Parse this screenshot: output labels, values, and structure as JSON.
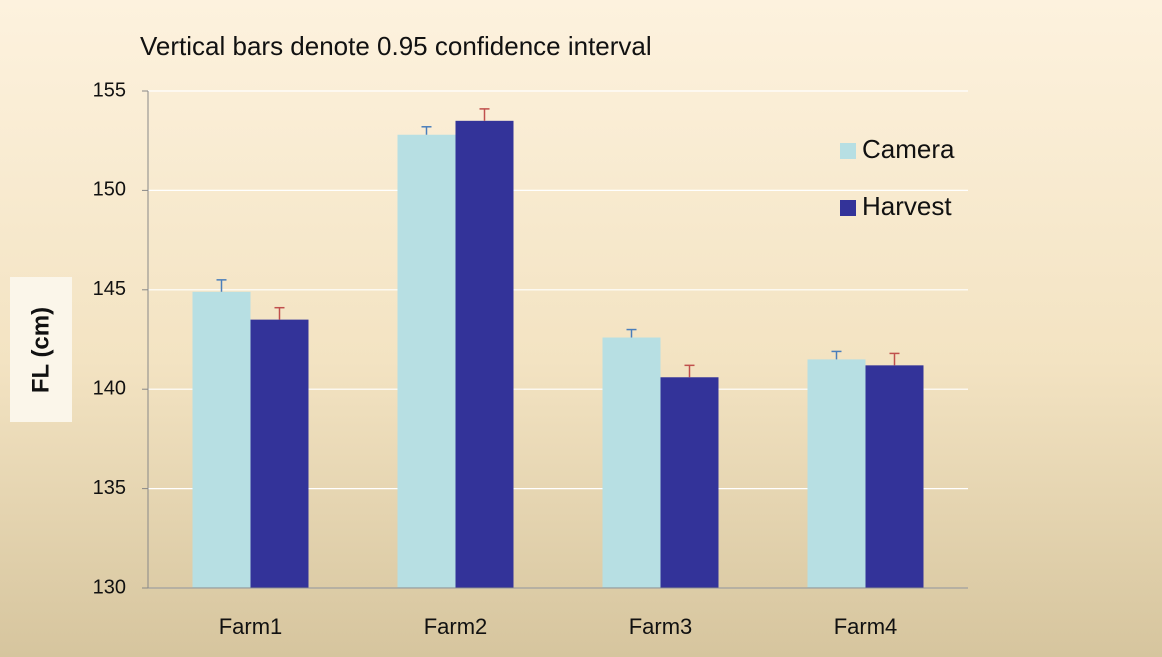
{
  "chart_data": {
    "type": "bar",
    "title": "Vertical bars denote 0.95 confidence interval",
    "y_label": "FL (cm)",
    "categories": [
      "Farm1",
      "Farm2",
      "Farm3",
      "Farm4"
    ],
    "series": [
      {
        "name": "Camera",
        "color": "#b7dfe3",
        "error_color": "#4a7ebb",
        "values": [
          144.9,
          152.8,
          142.6,
          141.5
        ],
        "errors": [
          0.6,
          0.4,
          0.4,
          0.4
        ]
      },
      {
        "name": "Harvest",
        "color": "#333399",
        "error_color": "#c0504d",
        "values": [
          143.5,
          153.5,
          140.6,
          141.2
        ],
        "errors": [
          0.6,
          0.6,
          0.6,
          0.6
        ]
      }
    ],
    "ylim": [
      130,
      155
    ],
    "yticks": [
      130,
      135,
      140,
      145,
      150,
      155
    ],
    "grid": true,
    "legend": "upper right"
  }
}
